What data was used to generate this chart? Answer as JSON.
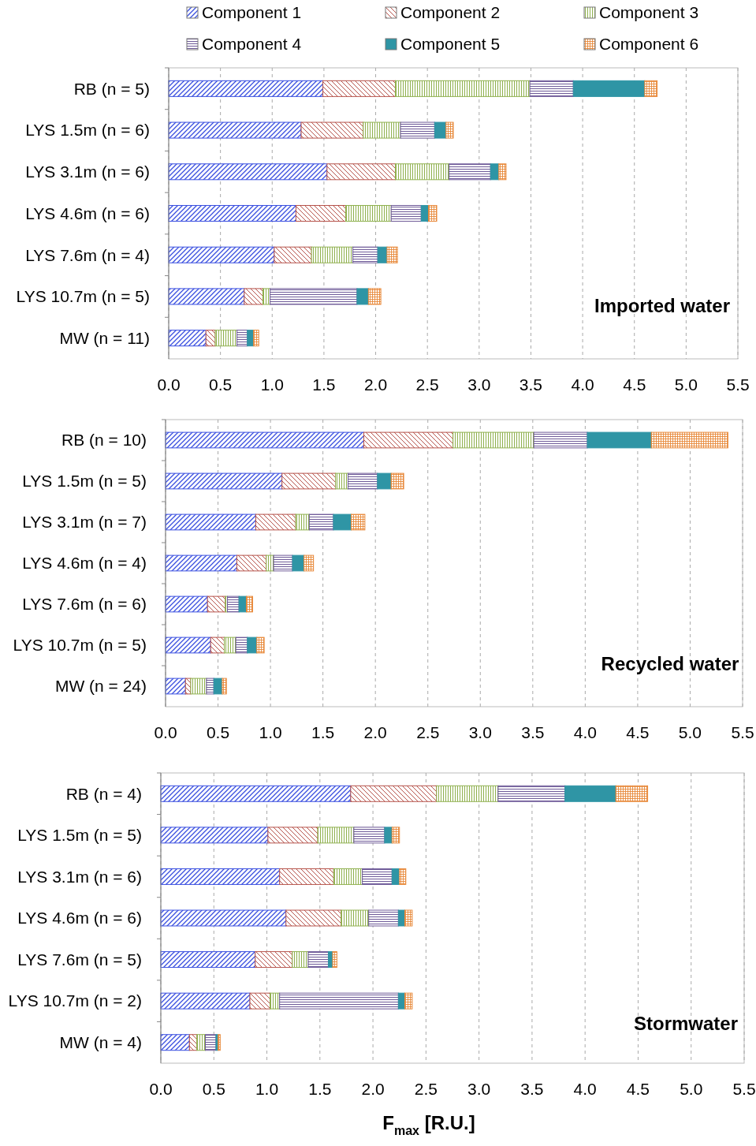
{
  "chart_data": [
    {
      "type": "bar",
      "orientation": "horizontal",
      "stacked": true,
      "grid": "x",
      "legend": "top",
      "categories": [
        "RB (n = 5)",
        "LYS 1.5m (n = 6)",
        "LYS 3.1m (n = 6)",
        "LYS 4.6m (n = 6)",
        "LYS 7.6m (n = 4)",
        "LYS 10.7m (n = 5)",
        "MW (n = 11)"
      ],
      "xlim": [
        0,
        5.5
      ],
      "xticks": [
        {
          "value": 0,
          "label": "0.0"
        },
        {
          "value": 0.5,
          "label": "0.5"
        },
        {
          "value": 1,
          "label": "1.0"
        },
        {
          "value": 1.5,
          "label": "1.5"
        },
        {
          "value": 2,
          "label": "2.0"
        },
        {
          "value": 2.5,
          "label": "2.5"
        },
        {
          "value": 3,
          "label": "3.0"
        },
        {
          "value": 3.5,
          "label": "3.5"
        },
        {
          "value": 4,
          "label": "4.0"
        },
        {
          "value": 4.5,
          "label": "4.5"
        },
        {
          "value": 5,
          "label": "5.0"
        },
        {
          "value": 5.5,
          "label": "5.5"
        }
      ],
      "annotations": [
        "Imported water"
      ],
      "series": [
        {
          "name": "Component 1",
          "color": "#3a4fe0",
          "values": [
            1.49,
            1.28,
            1.53,
            1.23,
            1.02,
            0.73,
            0.36
          ]
        },
        {
          "name": "Component 2",
          "color": "#b5524a",
          "values": [
            0.7,
            0.6,
            0.66,
            0.48,
            0.36,
            0.18,
            0.09
          ]
        },
        {
          "name": "Component 3",
          "color": "#8fb04e",
          "values": [
            1.3,
            0.36,
            0.52,
            0.44,
            0.4,
            0.07,
            0.21
          ]
        },
        {
          "name": "Component 4",
          "color": "#6e5a98",
          "values": [
            0.42,
            0.33,
            0.4,
            0.29,
            0.24,
            0.84,
            0.1
          ]
        },
        {
          "name": "Component 5",
          "color": "#2f95a5",
          "values": [
            0.69,
            0.11,
            0.08,
            0.07,
            0.09,
            0.11,
            0.06
          ]
        },
        {
          "name": "Component 6",
          "color": "#e8893a",
          "values": [
            0.12,
            0.07,
            0.07,
            0.08,
            0.1,
            0.12,
            0.05
          ]
        }
      ]
    },
    {
      "type": "bar",
      "orientation": "horizontal",
      "stacked": true,
      "grid": "x",
      "categories": [
        "RB (n = 10)",
        "LYS 1.5m (n = 5)",
        "LYS 3.1m (n = 7)",
        "LYS 4.6m (n = 4)",
        "LYS 7.6m (n = 6)",
        "LYS 10.7m (n = 5)",
        "MW (n = 24)"
      ],
      "xlim": [
        0,
        5.5
      ],
      "xticks": [
        {
          "value": 0,
          "label": "0.0"
        },
        {
          "value": 0.5,
          "label": "0.5"
        },
        {
          "value": 1,
          "label": "1.0"
        },
        {
          "value": 1.5,
          "label": "1.5"
        },
        {
          "value": 2,
          "label": "2.0"
        },
        {
          "value": 2.5,
          "label": "2.5"
        },
        {
          "value": 3,
          "label": "3.0"
        },
        {
          "value": 3.5,
          "label": "3.5"
        },
        {
          "value": 4,
          "label": "4.0"
        },
        {
          "value": 4.5,
          "label": "4.5"
        },
        {
          "value": 5,
          "label": "5.0"
        },
        {
          "value": 5.5,
          "label": "5.5"
        }
      ],
      "annotations": [
        "Recycled water"
      ],
      "series": [
        {
          "color": "#3a4fe0",
          "values": [
            1.89,
            1.11,
            0.86,
            0.68,
            0.4,
            0.43,
            0.19
          ]
        },
        {
          "color": "#b5524a",
          "values": [
            0.85,
            0.51,
            0.38,
            0.28,
            0.17,
            0.13,
            0.05
          ]
        },
        {
          "color": "#8fb04e",
          "values": [
            0.77,
            0.12,
            0.13,
            0.07,
            0.02,
            0.11,
            0.15
          ]
        },
        {
          "color": "#6e5a98",
          "values": [
            0.51,
            0.28,
            0.23,
            0.18,
            0.11,
            0.11,
            0.07
          ]
        },
        {
          "color": "#2f95a5",
          "values": [
            0.61,
            0.13,
            0.17,
            0.11,
            0.07,
            0.09,
            0.08
          ]
        },
        {
          "color": "#e8893a",
          "values": [
            0.73,
            0.12,
            0.13,
            0.09,
            0.06,
            0.07,
            0.04
          ]
        }
      ]
    },
    {
      "type": "bar",
      "orientation": "horizontal",
      "stacked": true,
      "grid": "x",
      "categories": [
        "RB (n = 4)",
        "LYS 1.5m (n = 5)",
        "LYS 3.1m (n = 6)",
        "LYS 4.6m (n = 6)",
        "LYS 7.6m (n = 5)",
        "LYS 10.7m (n = 2)",
        "MW (n = 4)"
      ],
      "xlim": [
        0,
        5.5
      ],
      "xticks": [
        {
          "value": 0,
          "label": "0.0"
        },
        {
          "value": 0.5,
          "label": "0.5"
        },
        {
          "value": 1,
          "label": "1.0"
        },
        {
          "value": 1.5,
          "label": "1.5"
        },
        {
          "value": 2,
          "label": "2.0"
        },
        {
          "value": 2.5,
          "label": "2.5"
        },
        {
          "value": 3,
          "label": "3.0"
        },
        {
          "value": 3.5,
          "label": "3.5"
        },
        {
          "value": 4,
          "label": "4.0"
        },
        {
          "value": 4.5,
          "label": "4.5"
        },
        {
          "value": 5,
          "label": "5.0"
        },
        {
          "value": 5.5,
          "label": "5.5"
        }
      ],
      "xlabel": "F$_{max}$ [R.U.]",
      "annotations": [
        "Stormwater"
      ],
      "series": [
        {
          "color": "#3a4fe0",
          "values": [
            1.79,
            1.01,
            1.12,
            1.18,
            0.89,
            0.84,
            0.27
          ]
        },
        {
          "color": "#b5524a",
          "values": [
            0.81,
            0.47,
            0.51,
            0.52,
            0.35,
            0.19,
            0.07
          ]
        },
        {
          "color": "#8fb04e",
          "values": [
            0.58,
            0.34,
            0.27,
            0.26,
            0.15,
            0.09,
            0.08
          ]
        },
        {
          "color": "#6e5a98",
          "values": [
            0.63,
            0.29,
            0.28,
            0.28,
            0.19,
            1.12,
            0.1
          ]
        },
        {
          "color": "#2f95a5",
          "values": [
            0.48,
            0.07,
            0.07,
            0.06,
            0.04,
            0.06,
            0.02
          ]
        },
        {
          "color": "#e8893a",
          "values": [
            0.3,
            0.07,
            0.06,
            0.07,
            0.04,
            0.07,
            0.02
          ]
        }
      ]
    }
  ]
}
